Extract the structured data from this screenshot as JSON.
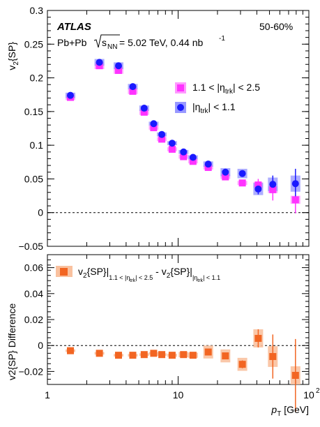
{
  "figure": {
    "experiment": "ATLAS",
    "centrality": "50-60%",
    "collision": "Pb+Pb",
    "sqrt_symbol": "s",
    "sqrt_subscript": "NN",
    "energy_lumi_pre": " = 5.02 TeV, 0.44 nb",
    "lumi_exponent": "-1"
  },
  "colors": {
    "outer_series": "#ff33ff",
    "outer_band": "#ff99ff",
    "inner_series": "#1a1aff",
    "inner_band": "#9999ff",
    "difference": "#f26522",
    "difference_band": "#f9c19f"
  },
  "chart_data": [
    {
      "type": "scatter",
      "name": "top-panel",
      "x_scale": "log",
      "xlim": [
        1,
        100
      ],
      "ylim": [
        -0.05,
        0.3
      ],
      "ylabel_main": "v",
      "ylabel_sub": "2",
      "ylabel_rest": "{SP}",
      "y_ticks": [
        "−0.05",
        "0",
        "0.05",
        "0.1",
        "0.15",
        "0.2",
        "0.25",
        "0.3"
      ],
      "y_tick_values": [
        -0.05,
        0,
        0.05,
        0.1,
        0.15,
        0.2,
        0.25,
        0.3
      ],
      "reference_line": 0,
      "legend_position": "upper-right",
      "series": [
        {
          "legend_pre": "1.1 < |η",
          "legend_sub": "trk",
          "legend_post": "| < 2.5",
          "marker": "square",
          "x": [
            1.5,
            2.5,
            3.5,
            4.5,
            5.5,
            6.5,
            7.5,
            9,
            11,
            13,
            17,
            23,
            31,
            41,
            53,
            79
          ],
          "y": [
            0.171,
            0.218,
            0.211,
            0.18,
            0.149,
            0.126,
            0.109,
            0.094,
            0.083,
            0.076,
            0.067,
            0.053,
            0.044,
            0.041,
            0.034,
            0.019
          ],
          "err": [
            0.002,
            0.002,
            0.002,
            0.002,
            0.002,
            0.002,
            0.002,
            0.002,
            0.002,
            0.002,
            0.002,
            0.003,
            0.004,
            0.009,
            0.016,
            0.02
          ],
          "sys": [
            0.004,
            0.005,
            0.005,
            0.004,
            0.004,
            0.003,
            0.003,
            0.003,
            0.003,
            0.003,
            0.003,
            0.003,
            0.003,
            0.004,
            0.005,
            0.006
          ]
        },
        {
          "legend_pre": "|η",
          "legend_sub": "trk",
          "legend_post": "| < 1.1",
          "marker": "circle",
          "x": [
            1.5,
            2.5,
            3.5,
            4.5,
            5.5,
            6.5,
            7.5,
            9,
            11,
            13,
            17,
            23,
            31,
            41,
            53,
            79
          ],
          "y": [
            0.174,
            0.223,
            0.218,
            0.187,
            0.155,
            0.132,
            0.116,
            0.103,
            0.09,
            0.082,
            0.072,
            0.06,
            0.058,
            0.035,
            0.042,
            0.043
          ],
          "err": [
            0.002,
            0.002,
            0.002,
            0.002,
            0.002,
            0.002,
            0.002,
            0.002,
            0.002,
            0.002,
            0.003,
            0.003,
            0.004,
            0.008,
            0.013,
            0.022
          ],
          "sys": [
            0.004,
            0.005,
            0.005,
            0.004,
            0.004,
            0.003,
            0.003,
            0.003,
            0.003,
            0.003,
            0.004,
            0.006,
            0.007,
            0.009,
            0.01,
            0.012
          ]
        }
      ]
    },
    {
      "type": "scatter",
      "name": "bottom-panel",
      "x_scale": "log",
      "xlim": [
        1,
        100
      ],
      "ylim": [
        -0.03,
        0.07
      ],
      "ylabel": "v2{SP} Difference",
      "y_ticks": [
        "−0.02",
        "0",
        "0.02",
        "0.04",
        "0.06"
      ],
      "y_tick_values": [
        -0.02,
        0,
        0.02,
        0.04,
        0.06
      ],
      "x_ticks": [
        "1",
        "10",
        "10"
      ],
      "x_tick_values": [
        1,
        10,
        100
      ],
      "x_tick_exponent": "2",
      "xlabel_main": "p",
      "xlabel_sub": "T",
      "xlabel_unit": " [GeV]",
      "reference_line": 0,
      "series": [
        {
          "legend_main": "v",
          "legend_sub1": "2",
          "legend_mid1": "{SP}|",
          "legend_sub2": "1.1 < |η",
          "legend_sub3": "trk",
          "legend_sub4": "| < 2.5",
          "legend_mid2": " - v",
          "legend_sub5": "2",
          "legend_mid3": "{SP}|",
          "legend_sub6": "|η",
          "legend_sub7": "trk",
          "legend_sub8": "| < 1.1",
          "marker": "square",
          "x": [
            1.5,
            2.5,
            3.5,
            4.5,
            5.5,
            6.5,
            7.5,
            9,
            11,
            13,
            17,
            23,
            31,
            41,
            53,
            79
          ],
          "y": [
            -0.004,
            -0.006,
            -0.0075,
            -0.0075,
            -0.007,
            -0.006,
            -0.007,
            -0.0075,
            -0.007,
            -0.0075,
            -0.005,
            -0.008,
            -0.0145,
            0.0055,
            -0.0085,
            -0.023
          ],
          "err": [
            0.0005,
            0.0005,
            0.0005,
            0.0005,
            0.0005,
            0.0005,
            0.0005,
            0.0005,
            0.0008,
            0.001,
            0.0015,
            0.002,
            0.003,
            0.007,
            0.017,
            0.028
          ],
          "sys": [
            0.001,
            0.001,
            0.001,
            0.001,
            0.001,
            0.001,
            0.001,
            0.0012,
            0.002,
            0.002,
            0.005,
            0.005,
            0.005,
            0.007,
            0.008,
            0.007
          ]
        }
      ]
    }
  ]
}
